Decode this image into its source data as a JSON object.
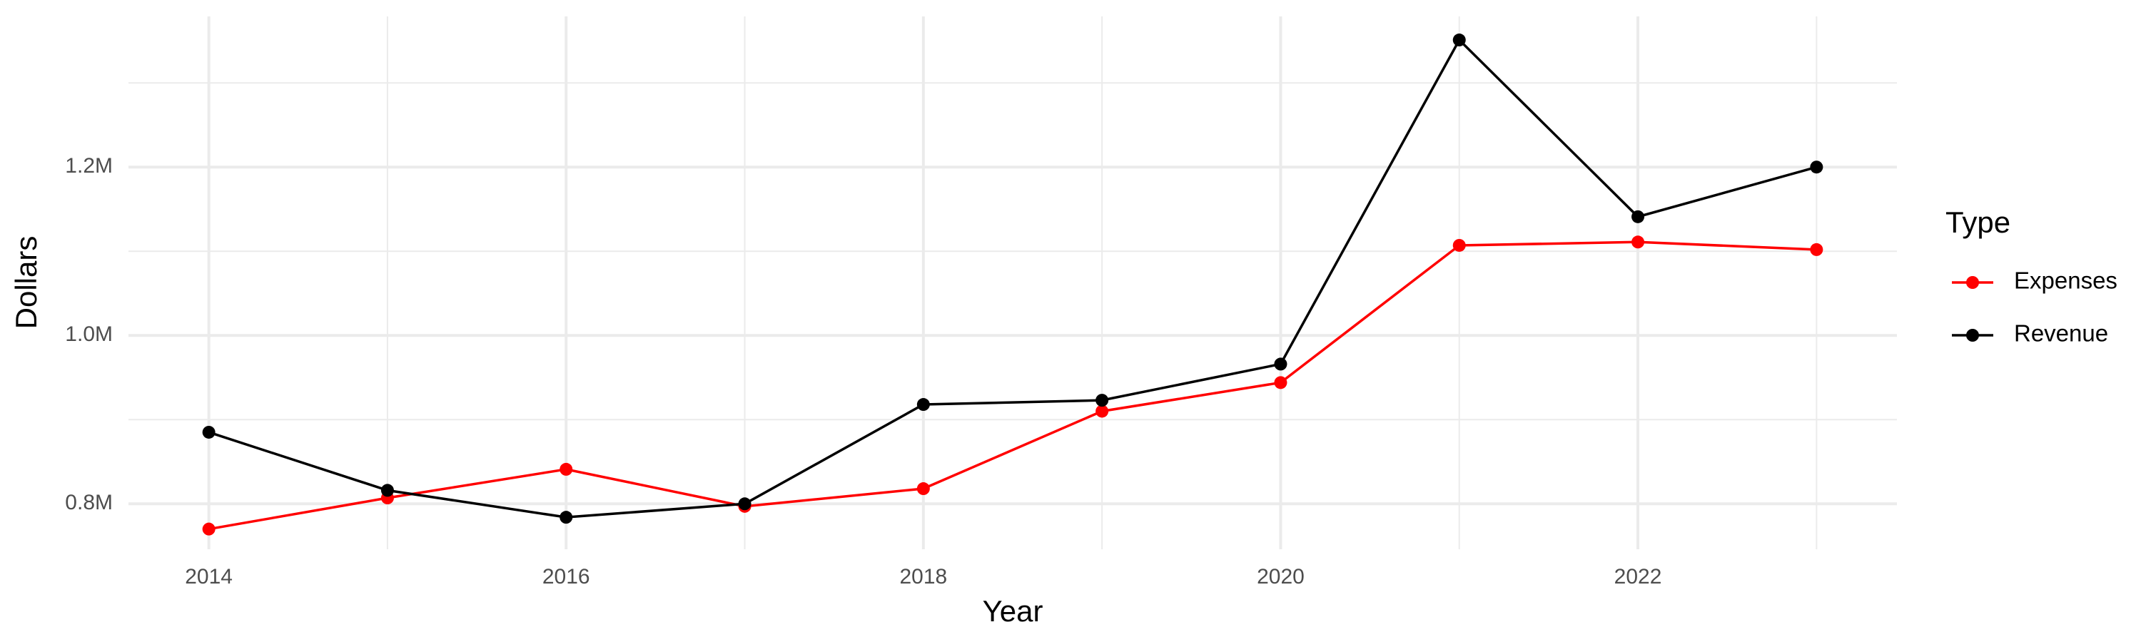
{
  "chart_data": {
    "type": "line",
    "x_label": "Year",
    "y_label": "Dollars",
    "legend_title": "Type",
    "x": [
      2014,
      2015,
      2016,
      2017,
      2018,
      2019,
      2020,
      2021,
      2022,
      2023
    ],
    "series": [
      {
        "name": "Expenses",
        "color": "#ff0000",
        "values": [
          770000,
          807000,
          841000,
          797000,
          818000,
          910000,
          944000,
          1107000,
          1111000,
          1102000
        ]
      },
      {
        "name": "Revenue",
        "color": "#000000",
        "values": [
          885000,
          816000,
          784000,
          800000,
          918000,
          923000,
          966000,
          1351000,
          1141000,
          1200000
        ]
      }
    ],
    "xlim": [
      2013.55,
      2023.45
    ],
    "xticks": [
      2014,
      2016,
      2018,
      2020,
      2022
    ],
    "ylim": [
      746000,
      1379000
    ],
    "yticks": [
      {
        "value": 800000,
        "label": "0.8M"
      },
      {
        "value": 1000000,
        "label": "1.0M"
      },
      {
        "value": 1200000,
        "label": "1.2M"
      }
    ],
    "grid": true,
    "legend_position": "right"
  }
}
